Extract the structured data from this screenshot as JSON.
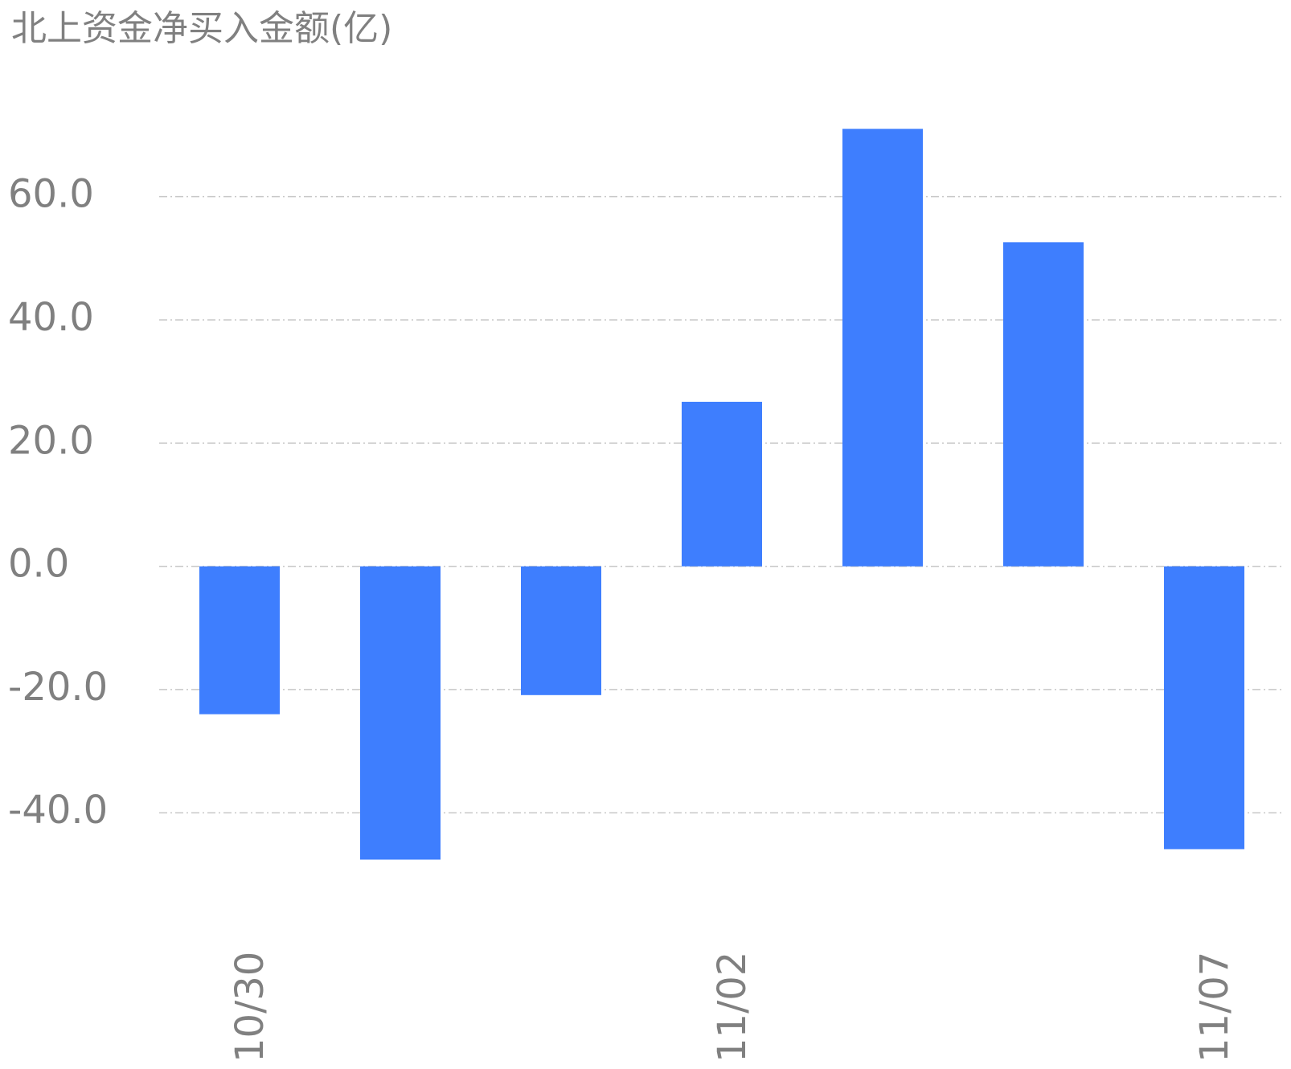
{
  "chart_data": {
    "type": "bar",
    "title": "北上资金净买入金额(亿)",
    "categories": [
      "10/30",
      null,
      null,
      "11/02",
      null,
      null,
      "11/07"
    ],
    "values": [
      -24.0,
      -47.6,
      -20.9,
      26.7,
      71.0,
      52.6,
      -45.9
    ],
    "color": "#3e7efe",
    "ylim": [
      -50,
      80
    ],
    "yticks": [
      {
        "value": -40,
        "label": "-40.0"
      },
      {
        "value": -20,
        "label": "-20.0"
      },
      {
        "value": 0,
        "label": "0.0"
      },
      {
        "value": 20,
        "label": "20.0"
      },
      {
        "value": 40,
        "label": "40.0"
      },
      {
        "value": 60,
        "label": "60.0"
      }
    ],
    "grid": true
  }
}
